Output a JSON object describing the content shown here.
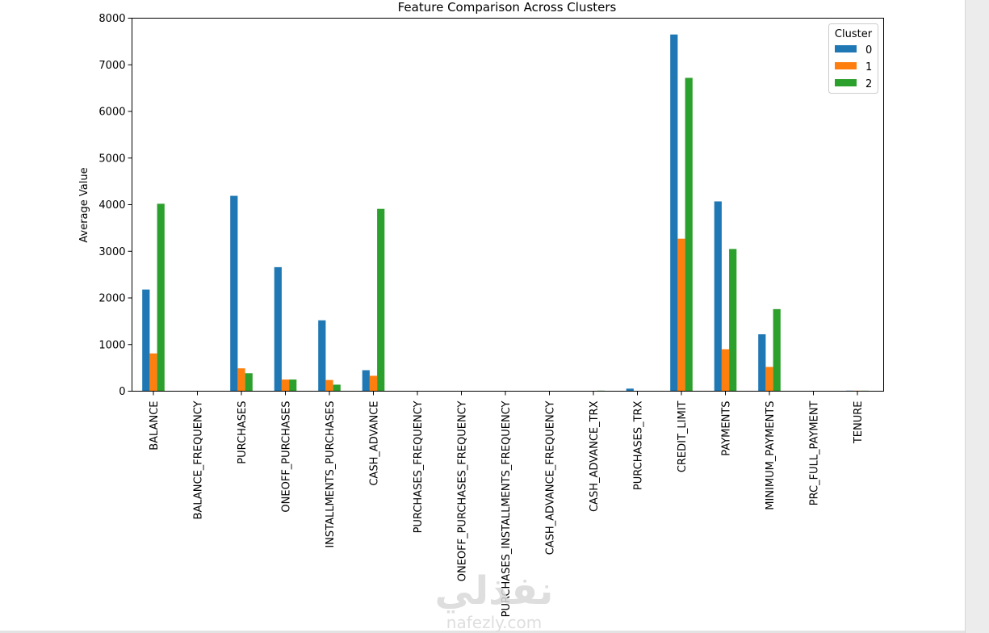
{
  "chart_data": {
    "type": "bar",
    "title": "Feature Comparison Across Clusters",
    "xlabel": "",
    "ylabel": "Average Value",
    "ylim": [
      0,
      8000
    ],
    "yticks": [
      0,
      1000,
      2000,
      3000,
      4000,
      5000,
      6000,
      7000,
      8000
    ],
    "grid": false,
    "legend": {
      "title": "Cluster",
      "placement": "top-right"
    },
    "categories": [
      "BALANCE",
      "BALANCE_FREQUENCY",
      "PURCHASES",
      "ONEOFF_PURCHASES",
      "INSTALLMENTS_PURCHASES",
      "CASH_ADVANCE",
      "PURCHASES_FREQUENCY",
      "ONEOFF_PURCHASES_FREQUENCY",
      "PURCHASES_INSTALLMENTS_FREQUENCY",
      "CASH_ADVANCE_FREQUENCY",
      "CASH_ADVANCE_TRX",
      "PURCHASES_TRX",
      "CREDIT_LIMIT",
      "PAYMENTS",
      "MINIMUM_PAYMENTS",
      "PRC_FULL_PAYMENT",
      "TENURE"
    ],
    "series": [
      {
        "name": "0",
        "color": "#1f77b4",
        "values": [
          2180,
          0.9,
          4190,
          2660,
          1520,
          450,
          0.8,
          0.5,
          0.7,
          0.1,
          2,
          55,
          7650,
          4070,
          1220,
          0.3,
          12
        ]
      },
      {
        "name": "1",
        "color": "#ff7f0e",
        "values": [
          810,
          0.8,
          490,
          250,
          240,
          330,
          0.4,
          0.1,
          0.3,
          0.1,
          1.5,
          8,
          3270,
          900,
          520,
          0.15,
          11.5
        ]
      },
      {
        "name": "2",
        "color": "#2ca02c",
        "values": [
          4020,
          0.97,
          385,
          250,
          140,
          3910,
          0.25,
          0.1,
          0.15,
          0.4,
          12,
          5,
          6720,
          3050,
          1760,
          0.04,
          11.4
        ]
      }
    ]
  },
  "watermark": {
    "brand_arabic": "نفذلي",
    "brand_latin": "nafezly.com"
  }
}
